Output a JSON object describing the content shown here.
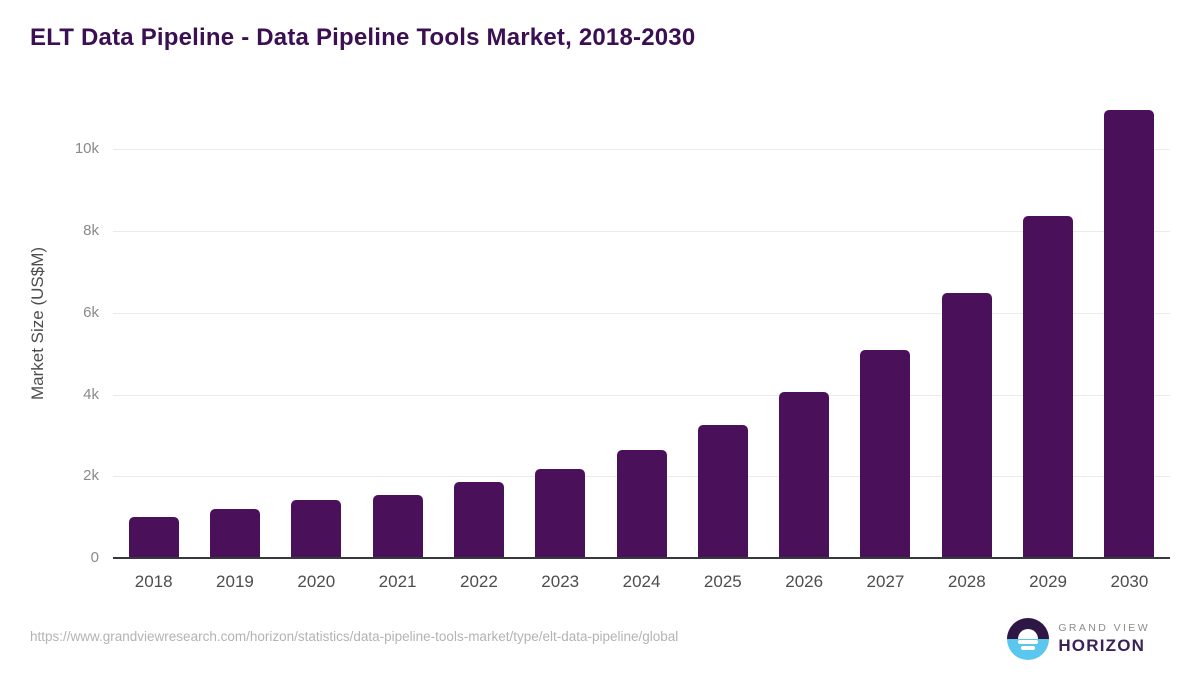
{
  "chart": {
    "title": "ELT Data Pipeline - Data Pipeline Tools Market, 2018-2030",
    "ylabel": "Market Size (US$M)"
  },
  "chart_data": {
    "type": "bar",
    "title": "ELT Data Pipeline - Data Pipeline Tools Market, 2018-2030",
    "xlabel": "",
    "ylabel": "Market Size (US$M)",
    "categories": [
      "2018",
      "2019",
      "2020",
      "2021",
      "2022",
      "2023",
      "2024",
      "2025",
      "2026",
      "2027",
      "2028",
      "2029",
      "2030"
    ],
    "values": [
      1000,
      1200,
      1420,
      1550,
      1850,
      2170,
      2650,
      3250,
      4050,
      5080,
      6480,
      8380,
      10950
    ],
    "ylim": [
      0,
      11500
    ],
    "ytick_values": [
      0,
      2000,
      4000,
      6000,
      8000,
      10000
    ],
    "ytick_labels": [
      "0",
      "2k",
      "4k",
      "6k",
      "8k",
      "10k"
    ],
    "grid": "horizontal",
    "legend": "none",
    "bar_color": "#4a115a"
  },
  "footer": {
    "source_url": "https://www.grandviewresearch.com/horizon/statistics/data-pipeline-tools-market/type/elt-data-pipeline/global"
  },
  "logo": {
    "icon": "sunrise-horizon-icon",
    "brand_top": "GRAND VIEW",
    "brand_bottom": "HORIZON"
  },
  "colors": {
    "title": "#3b1053",
    "bar": "#4a115a",
    "axis_line": "#37373f",
    "gridline": "#ebebeb",
    "ytick_label": "#8a8a8a",
    "xtick_label": "#4d4d4d",
    "source_text": "#b3b3b3",
    "logo_purple": "#2e1745",
    "logo_blue": "#5bc6ee"
  }
}
